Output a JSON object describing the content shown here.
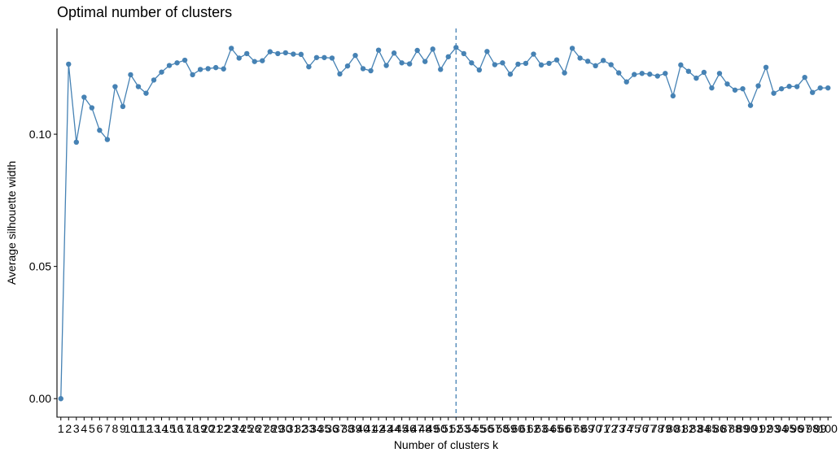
{
  "chart_data": {
    "type": "line",
    "title": "Optimal number of clusters",
    "xlabel": "Number of clusters k",
    "ylabel": "Average silhouette width",
    "x": [
      1,
      2,
      3,
      4,
      5,
      6,
      7,
      8,
      9,
      10,
      11,
      12,
      13,
      14,
      15,
      16,
      17,
      18,
      19,
      20,
      21,
      22,
      23,
      24,
      25,
      26,
      27,
      28,
      29,
      30,
      31,
      32,
      33,
      34,
      35,
      36,
      37,
      38,
      39,
      40,
      41,
      42,
      43,
      44,
      45,
      46,
      47,
      48,
      49,
      50,
      51,
      52,
      53,
      54,
      55,
      56,
      57,
      58,
      59,
      60,
      61,
      62,
      63,
      64,
      65,
      66,
      67,
      68,
      69,
      70,
      71,
      72,
      73,
      74,
      75,
      76,
      77,
      78,
      79,
      80,
      81,
      82,
      83,
      84,
      85,
      86,
      87,
      88,
      89,
      90,
      91,
      92,
      93,
      94,
      95,
      96,
      97,
      98,
      99,
      100
    ],
    "series": [
      {
        "values": [
          0.0,
          0.1265,
          0.097,
          0.114,
          0.11,
          0.1015,
          0.098,
          0.118,
          0.1105,
          0.1225,
          0.118,
          0.1155,
          0.1205,
          0.1235,
          0.126,
          0.127,
          0.128,
          0.1225,
          0.1245,
          0.1248,
          0.1252,
          0.1247,
          0.1325,
          0.1288,
          0.1305,
          0.1275,
          0.1278,
          0.1312,
          0.1305,
          0.1308,
          0.1303,
          0.1302,
          0.1255,
          0.129,
          0.129,
          0.1288,
          0.1228,
          0.1258,
          0.1298,
          0.1248,
          0.124,
          0.1318,
          0.126,
          0.1307,
          0.127,
          0.1266,
          0.1317,
          0.1275,
          0.1322,
          0.1245,
          0.1293,
          0.1328,
          0.1305,
          0.127,
          0.1243,
          0.1313,
          0.1263,
          0.127,
          0.1227,
          0.1265,
          0.1268,
          0.1303,
          0.1262,
          0.1268,
          0.1281,
          0.1232,
          0.1325,
          0.1288,
          0.1276,
          0.1259,
          0.1279,
          0.1263,
          0.1232,
          0.1198,
          0.1226,
          0.123,
          0.1227,
          0.122,
          0.123,
          0.1145,
          0.1262,
          0.1238,
          0.1212,
          0.1234,
          0.1175,
          0.123,
          0.119,
          0.1167,
          0.1172,
          0.1109,
          0.1183,
          0.1253,
          0.1155,
          0.1172,
          0.1181,
          0.118,
          0.1215,
          0.1158,
          0.1175,
          0.1175
        ]
      }
    ],
    "optimal_k": 52,
    "ylim": [
      -0.007,
      0.14
    ],
    "y_ticks": [
      "0.00",
      "0.05",
      "0.10"
    ],
    "y_tick_values": [
      0.0,
      0.05,
      0.1
    ],
    "grid": false,
    "legend": "none",
    "colors": {
      "line": "#4682B4",
      "point": "#4682B4",
      "vline": "#4682B4"
    }
  }
}
